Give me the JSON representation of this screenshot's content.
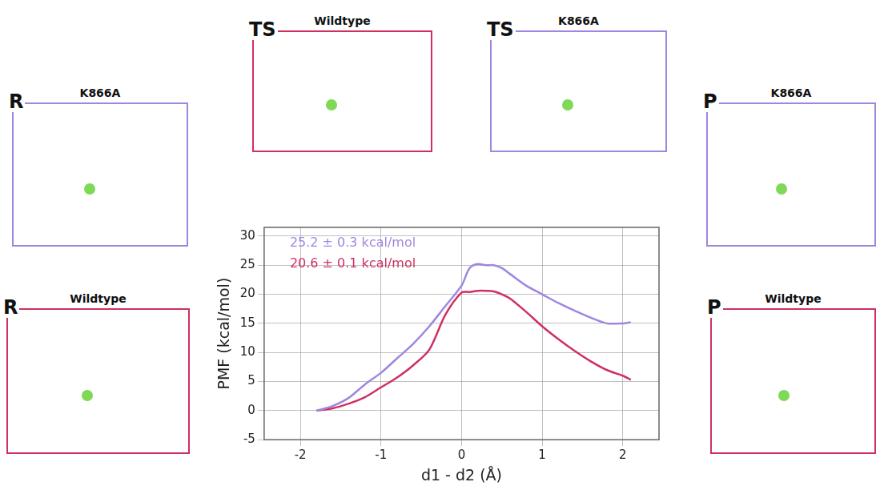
{
  "chart_data": {
    "type": "line",
    "x_label": "d1 - d2 (Å)",
    "y_label": "PMF (kcal/mol)",
    "x": [
      -1.8,
      -1.6,
      -1.4,
      -1.2,
      -1.0,
      -0.8,
      -0.6,
      -0.4,
      -0.2,
      0,
      0.1,
      0.2,
      0.3,
      0.4,
      0.5,
      0.6,
      0.8,
      1.0,
      1.2,
      1.4,
      1.6,
      1.8,
      2.0,
      2.1
    ],
    "series": [
      {
        "color": "#9f86e0",
        "values": [
          0,
          0.8,
          2.2,
          4.5,
          6.5,
          9,
          11.5,
          14.5,
          18,
          21.5,
          24.5,
          25.2,
          25,
          25,
          24.5,
          23.5,
          21.5,
          20,
          18.5,
          17.2,
          16,
          15,
          15,
          15.2
        ]
      },
      {
        "color": "#d0305f",
        "values": [
          0,
          0.4,
          1.2,
          2.3,
          4,
          5.7,
          7.8,
          10.5,
          16.5,
          20.3,
          20.4,
          20.6,
          20.6,
          20.5,
          20,
          19.3,
          17,
          14.5,
          12.3,
          10.3,
          8.5,
          7,
          6,
          5.3
        ]
      }
    ],
    "annotations": [
      {
        "text": "25.2 ± 0.3 kcal/mol",
        "color": "#9f86e0"
      },
      {
        "text": "20.6 ± 0.1 kcal/mol",
        "color": "#d0305f"
      }
    ],
    "xlim": [
      -2.45,
      2.45
    ],
    "xticks": [
      -2,
      -1,
      0,
      1,
      2
    ],
    "ylim": [
      -5,
      31.5
    ],
    "yticks": [
      -5,
      0,
      5,
      10,
      15,
      20,
      25,
      30
    ],
    "grid": true,
    "line_style": "solid"
  },
  "panels": [
    {
      "letter": "R",
      "title": "K866A",
      "color": "#9f86e0"
    },
    {
      "letter": "R",
      "title": "Wildtype",
      "color": "#d0305f"
    },
    {
      "letter": "TS",
      "title": "Wildtype",
      "color": "#d0305f"
    },
    {
      "letter": "TS",
      "title": "K866A",
      "color": "#9f86e0"
    },
    {
      "letter": "P",
      "title": "K866A",
      "color": "#9f86e0"
    },
    {
      "letter": "P",
      "title": "Wildtype",
      "color": "#d0305f"
    }
  ]
}
